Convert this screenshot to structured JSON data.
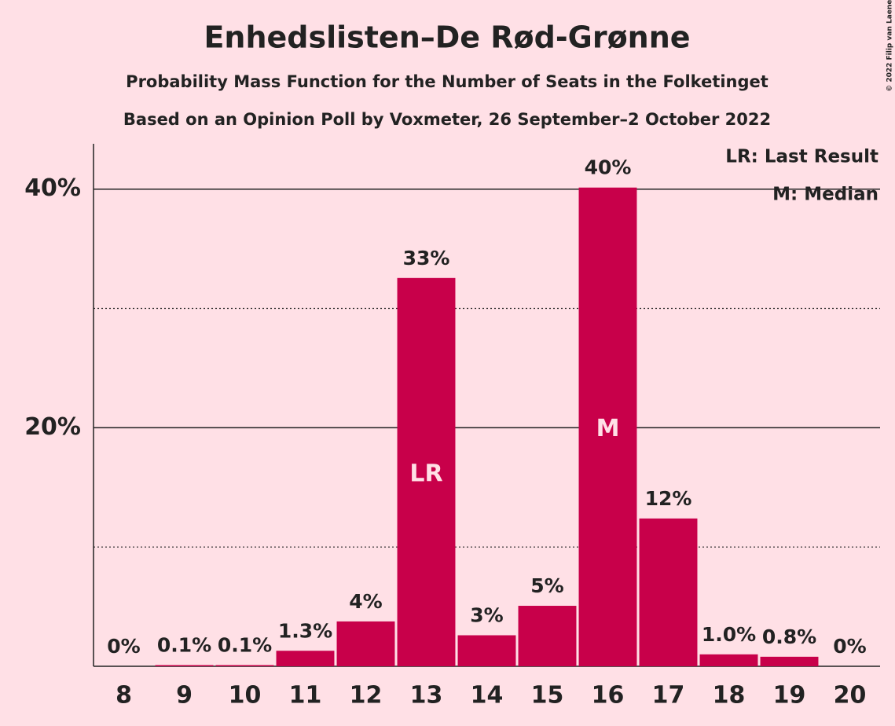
{
  "chart_data": {
    "type": "bar",
    "title": "Enhedslisten–De Rød-Grønne",
    "subtitle": "Probability Mass Function for the Number of Seats in the Folketinget",
    "subtitle2": "Based on an Opinion Poll by Voxmeter, 26 September–2 October 2022",
    "copyright": "© 2022 Filip van Laenen",
    "categories": [
      "8",
      "9",
      "10",
      "11",
      "12",
      "13",
      "14",
      "15",
      "16",
      "17",
      "18",
      "19",
      "20"
    ],
    "values": [
      0,
      0.1,
      0.1,
      1.3,
      3.76,
      32.55,
      2.6,
      5.07,
      40.13,
      12.39,
      1.0,
      0.8,
      0
    ],
    "value_labels": [
      "0%",
      "0.1%",
      "0.1%",
      "1.3%",
      "4%",
      "33%",
      "3%",
      "5%",
      "40%",
      "12%",
      "1.0%",
      "0.8%",
      "0%"
    ],
    "color": "#c8004a",
    "ylim": [
      0,
      43.8
    ],
    "yticks": [
      {
        "value": 20,
        "label": "20%"
      },
      {
        "value": 40,
        "label": "40%"
      }
    ],
    "minor_yticks": [
      10,
      30
    ],
    "grid": true,
    "annotations": [
      {
        "x": 13,
        "text": "LR"
      },
      {
        "x": 16,
        "text": "M"
      }
    ],
    "legend": [
      "LR: Last Result",
      "M: Median"
    ],
    "legend_position": "top-right"
  }
}
